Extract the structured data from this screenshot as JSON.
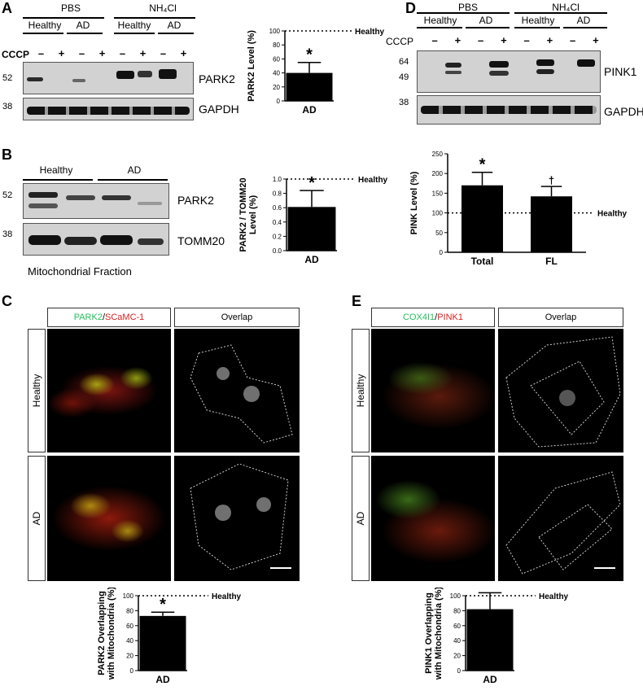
{
  "panels": {
    "A": {
      "label": "A",
      "groups": [
        "PBS",
        "NH₄Cl"
      ],
      "subgroups": [
        "Healthy",
        "AD",
        "Healthy",
        "AD"
      ],
      "cccp_label": "CCCP",
      "cccp_signs": [
        "–",
        "+",
        "–",
        "+",
        "–",
        "+",
        "–",
        "+"
      ],
      "markers": [
        "52",
        "38"
      ],
      "proteins": [
        "PARK2",
        "GAPDH"
      ]
    },
    "B": {
      "label": "B",
      "groups": [
        "Healthy",
        "AD"
      ],
      "markers": [
        "52",
        "38"
      ],
      "proteins": [
        "PARK2",
        "TOMM20"
      ],
      "fraction_caption": "Mitochondrial Fraction"
    },
    "C": {
      "label": "C",
      "col_green": "PARK2",
      "col_slash": "/",
      "col_red": "SCaMC-1",
      "col_overlap": "Overlap",
      "rows": [
        "Healthy",
        "AD"
      ]
    },
    "D": {
      "label": "D",
      "groups": [
        "PBS",
        "NH₄Cl"
      ],
      "subgroups": [
        "Healthy",
        "AD",
        "Healthy",
        "AD"
      ],
      "cccp_label": "CCCP",
      "cccp_signs": [
        "–",
        "+",
        "–",
        "+",
        "–",
        "+",
        "–",
        "+"
      ],
      "markers": [
        "64",
        "49",
        "38"
      ],
      "proteins": [
        "PINK1",
        "GAPDH"
      ]
    },
    "E": {
      "label": "E",
      "col_green": "COX4I1",
      "col_slash": "/",
      "col_red": "PINK1",
      "col_overlap": "Overlap",
      "rows": [
        "Healthy",
        "AD"
      ]
    }
  },
  "colors": {
    "green": "#22c35a",
    "red": "#e02020",
    "bar": "#000000"
  },
  "chart_data": [
    {
      "id": "A-bar",
      "type": "bar",
      "categories": [
        "AD"
      ],
      "values": [
        40
      ],
      "errors": [
        15
      ],
      "ylabel": "PARK2 Level (%)",
      "ylim": [
        0,
        100
      ],
      "yticks": [
        "0",
        "20",
        "40",
        "60",
        "80",
        "100"
      ],
      "reference": {
        "value": 100,
        "label": "Healthy"
      },
      "star": "*"
    },
    {
      "id": "B-bar",
      "type": "bar",
      "categories": [
        "AD"
      ],
      "values": [
        0.61
      ],
      "errors": [
        0.23
      ],
      "ylabel": "PARK2 / TOMM20 Level (%)",
      "ylim": [
        0,
        1
      ],
      "yticks": [
        "0.0",
        "0.2",
        "0.4",
        "0.6",
        "0.8",
        "1.0"
      ],
      "reference": {
        "value": 1.0,
        "label": "Healthy"
      },
      "star": "*"
    },
    {
      "id": "D-bar",
      "type": "bar",
      "categories": [
        "Total",
        "FL"
      ],
      "values": [
        170,
        142
      ],
      "errors": [
        33,
        25
      ],
      "ylabel": "PINK Level (%)",
      "ylim": [
        0,
        250
      ],
      "yticks": [
        "0",
        "50",
        "100",
        "150",
        "200",
        "250"
      ],
      "reference": {
        "value": 100,
        "label": "Healthy"
      },
      "marks": [
        "*",
        "†"
      ]
    },
    {
      "id": "C-bar",
      "type": "bar",
      "categories": [
        "AD"
      ],
      "values": [
        73
      ],
      "errors": [
        5
      ],
      "ylabel": "PARK2 Overlapping with Mitochondria (%)",
      "ylim": [
        0,
        100
      ],
      "yticks": [
        "0",
        "20",
        "40",
        "60",
        "80",
        "100"
      ],
      "reference": {
        "value": 100,
        "label": "Healthy"
      },
      "star": "*"
    },
    {
      "id": "E-bar",
      "type": "bar",
      "categories": [
        "AD"
      ],
      "values": [
        82
      ],
      "errors": [
        22
      ],
      "ylabel": "PINK1 Overlapping with Mitochondria (%)",
      "ylim": [
        0,
        100
      ],
      "yticks": [
        "0",
        "20",
        "40",
        "60",
        "80",
        "100"
      ],
      "reference": {
        "value": 100,
        "label": "Healthy"
      }
    }
  ]
}
